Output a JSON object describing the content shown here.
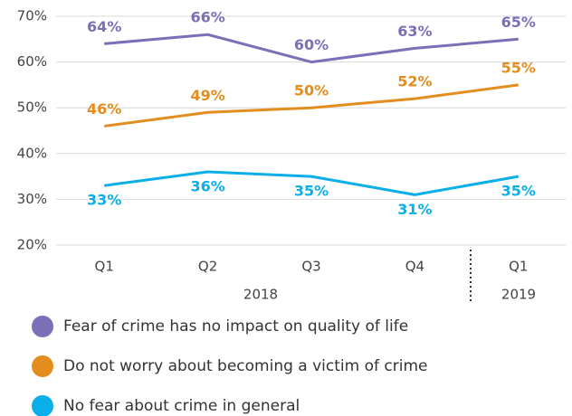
{
  "chart_data": {
    "type": "line",
    "categories": [
      "Q1",
      "Q2",
      "Q3",
      "Q4",
      "Q1"
    ],
    "year_labels": [
      "2018",
      "2019"
    ],
    "series": [
      {
        "name": "Fear of crime has no impact on quality of life",
        "color": "#7b6fb8",
        "values": [
          64,
          66,
          60,
          63,
          65
        ],
        "value_labels": [
          "64%",
          "66%",
          "60%",
          "63%",
          "65%"
        ]
      },
      {
        "name": "Do not worry about becoming a victim of crime",
        "color": "#e38d1f",
        "values": [
          46,
          49,
          50,
          52,
          55
        ],
        "value_labels": [
          "46%",
          "49%",
          "50%",
          "52%",
          "55%"
        ]
      },
      {
        "name": "No fear about crime in general",
        "color": "#0aaee8",
        "values": [
          33,
          36,
          35,
          31,
          35
        ],
        "value_labels": [
          "33%",
          "36%",
          "35%",
          "31%",
          "35%"
        ]
      }
    ],
    "ylim": [
      20,
      70
    ],
    "yticks": [
      {
        "value": 20,
        "label": "20%"
      },
      {
        "value": 30,
        "label": "30%"
      },
      {
        "value": 40,
        "label": "40%"
      },
      {
        "value": 50,
        "label": "50%"
      },
      {
        "value": 60,
        "label": "60%"
      },
      {
        "value": 70,
        "label": "70%"
      }
    ],
    "grid": true
  }
}
